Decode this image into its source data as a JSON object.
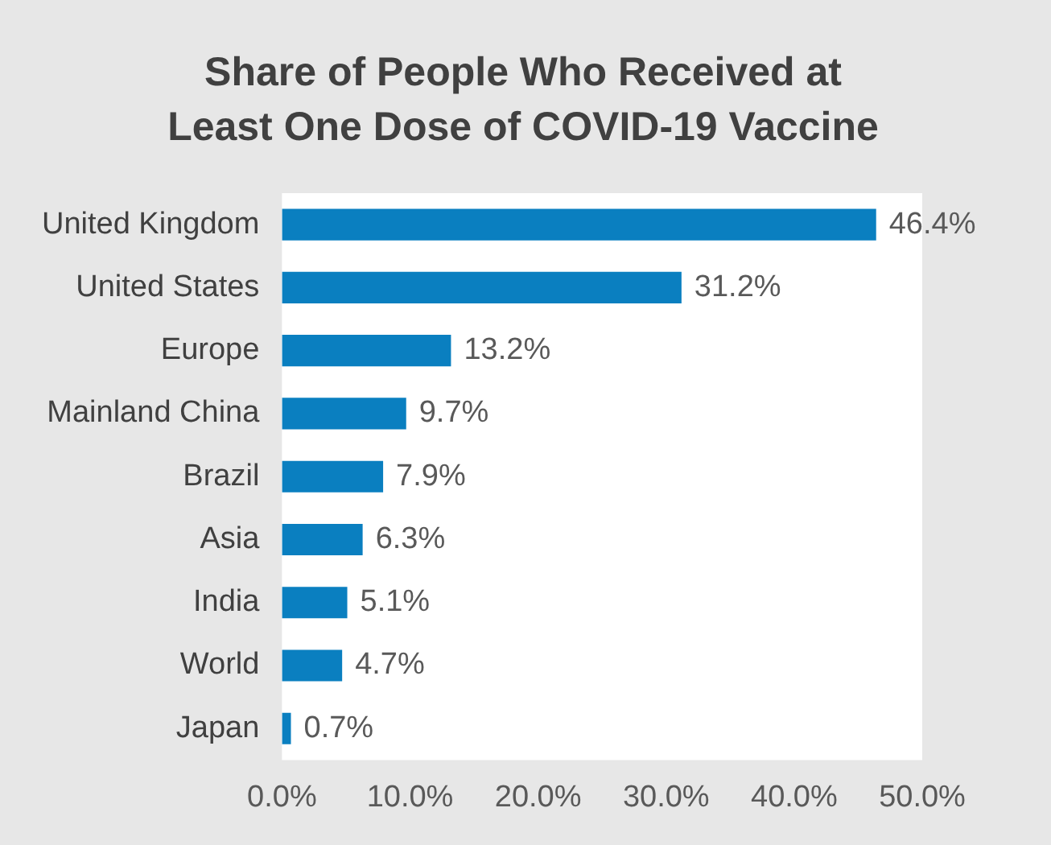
{
  "chart_data": {
    "type": "bar",
    "orientation": "horizontal",
    "title": "Share of People Who Received at Least One Dose of COVID-19 Vaccine",
    "categories": [
      "United Kingdom",
      "United States",
      "Europe",
      "Mainland China",
      "Brazil",
      "Asia",
      "India",
      "World",
      "Japan"
    ],
    "values": [
      46.4,
      31.2,
      13.2,
      9.7,
      7.9,
      6.3,
      5.1,
      4.7,
      0.7
    ],
    "value_labels": [
      "46.4%",
      "31.2%",
      "13.2%",
      "9.7%",
      "7.9%",
      "6.3%",
      "5.1%",
      "4.7%",
      "0.7%"
    ],
    "color": "#0a7fc0",
    "xlim": [
      0,
      50
    ],
    "xticks": [
      {
        "value": 0,
        "label": "0.0%"
      },
      {
        "value": 10,
        "label": "10.0%"
      },
      {
        "value": 20,
        "label": "20.0%"
      },
      {
        "value": 30,
        "label": "30.0%"
      },
      {
        "value": 40,
        "label": "40.0%"
      },
      {
        "value": 50,
        "label": "50.0%"
      }
    ],
    "grid": false,
    "legend": false
  }
}
